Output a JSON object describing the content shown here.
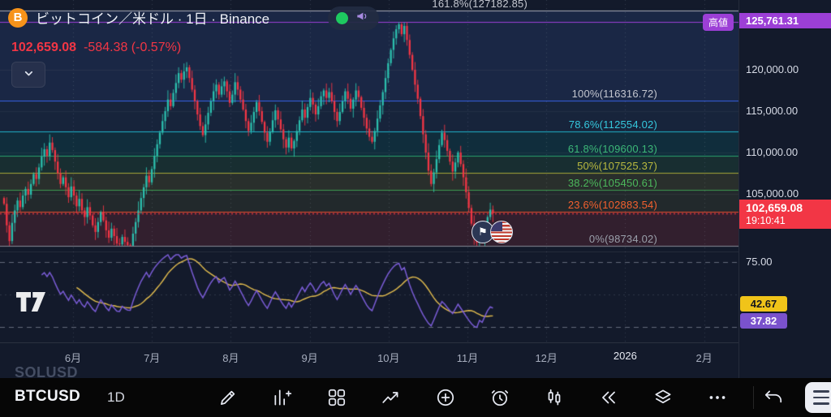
{
  "header": {
    "symbol_title": "ビットコイン／米ドル · 1日 · Binance",
    "price": "102,659.08",
    "change": "-584.38 (-0.57%)",
    "change_color": "#f23645"
  },
  "status_pill": {
    "market_dot_color": "#1ec960",
    "megaphone_icon": "megaphone-icon"
  },
  "collapse_button": {
    "icon": "chevron-down-icon"
  },
  "high_line": {
    "label": "高値",
    "price_label": "125,761.31",
    "price": 125761.31,
    "color": "#9c3fd6"
  },
  "current_price_line": {
    "price_label": "102,659.08",
    "time_label": "19:10:41",
    "price": 102659.08,
    "color": "#f23645"
  },
  "fib_levels": [
    {
      "pct": "161.8%",
      "label": "161.8%(127182.85)",
      "price": 127182.85,
      "text_color": "#c3c6cf",
      "line_color": "#b7bac4",
      "band_below": "rgba(70,110,205,0.16)"
    },
    {
      "pct": "100%",
      "label": "100%(116316.72)",
      "price": 116316.72,
      "text_color": "#c3c6cf",
      "line_color": "#3d6dff",
      "band_below": "rgba(55,125,210,0.10)"
    },
    {
      "pct": "78.6%",
      "label": "78.6%(112554.02)",
      "price": 112554.02,
      "text_color": "#35c8dd",
      "line_color": "#22c3da",
      "band_below": "rgba(0,188,190,0.12)"
    },
    {
      "pct": "61.8%",
      "label": "61.8%(109600.13)",
      "price": 109600.13,
      "text_color": "#3cb878",
      "line_color": "#2fae72",
      "band_below": "rgba(60,170,90,0.14)"
    },
    {
      "pct": "50%",
      "label": "50%(107525.37)",
      "price": 107525.37,
      "text_color": "#b9b93f",
      "line_color": "#b5b53a",
      "band_below": "rgba(175,175,60,0.14)"
    },
    {
      "pct": "38.2%",
      "label": "38.2%(105450.61)",
      "price": 105450.61,
      "text_color": "#4cb85c",
      "line_color": "#43a956",
      "band_below": "rgba(150,160,60,0.12)"
    },
    {
      "pct": "23.6%",
      "label": "23.6%(102883.54)",
      "price": 102883.54,
      "text_color": "#f4602e",
      "line_color": "#f4552e",
      "band_below": "rgba(225,60,70,0.15)"
    },
    {
      "pct": "0%",
      "label": "0%(98734.02)",
      "price": 98734.02,
      "text_color": "#9aa0ab",
      "line_color": "#9598a1",
      "band_below": null
    }
  ],
  "price_axis_ticks": [
    {
      "label": "120,000.00",
      "price": 120000
    },
    {
      "label": "115,000.00",
      "price": 115000
    },
    {
      "label": "110,000.00",
      "price": 110000
    },
    {
      "label": "105,000.00",
      "price": 105000
    }
  ],
  "rsi_pane": {
    "tick_label": "75.00",
    "tick_value": 75,
    "guide_high": 75,
    "guide_mid": 50,
    "guide_low": 25,
    "ma_badge": {
      "label": "42.67",
      "value": 42.67,
      "bg": "#f0c419",
      "fg": "#15171e"
    },
    "rsi_badge": {
      "label": "37.82",
      "value": 37.82,
      "bg": "#7a52cc",
      "fg": "#ffffff"
    }
  },
  "time_axis": {
    "labels": [
      "6月",
      "7月",
      "8月",
      "9月",
      "10月",
      "11月",
      "12月",
      "2026",
      "2月"
    ],
    "settings_icon": "gear-icon"
  },
  "watchlist_ghost": "SOLUSD",
  "event_flags": {
    "left_icon": "event-flag-icon",
    "right_icon": "us-flag-icon"
  },
  "toolbar": {
    "symbol": "BTCUSD",
    "interval": "1D",
    "icons": [
      "draw-icon",
      "indicators-icon",
      "layout-grid-icon",
      "trend-arrow-icon",
      "add-icon",
      "alert-icon",
      "chart-type-candles-icon",
      "replay-icon",
      "layers-icon",
      "more-icon"
    ],
    "undo_icon": "undo-icon",
    "menu_icon": "menu-icon"
  },
  "watermark": "tradingview-logo",
  "chart_data": {
    "type": "candlestick",
    "symbol": "BTCUSD",
    "interval": "1D",
    "visible_high": 125761.31,
    "visible_low": 98734.02,
    "last_close": 102659.08,
    "candle_up_color": "#2cbfae",
    "candle_down_color": "#f23645",
    "closes_thousands": [
      103.8,
      101.2,
      99.3,
      101.5,
      103.0,
      104.2,
      103.4,
      104.8,
      105.6,
      104.9,
      106.2,
      107.4,
      106.8,
      108.2,
      109.5,
      110.4,
      109.6,
      111.2,
      110.3,
      108.9,
      107.5,
      106.2,
      107.0,
      105.8,
      104.6,
      105.9,
      104.8,
      103.5,
      104.4,
      103.0,
      102.2,
      103.4,
      102.4,
      101.2,
      100.4,
      101.6,
      102.8,
      101.8,
      100.6,
      99.7,
      100.8,
      99.9,
      99.0,
      98.9,
      99.8,
      99.2,
      98.8,
      98.74,
      100.2,
      101.6,
      103.0,
      104.5,
      105.8,
      107.2,
      106.4,
      108.0,
      109.6,
      111.0,
      112.4,
      113.8,
      115.0,
      116.4,
      115.6,
      117.2,
      118.4,
      119.6,
      118.8,
      119.8,
      120.3,
      119.0,
      117.6,
      116.2,
      114.6,
      113.2,
      112.1,
      113.4,
      114.8,
      116.2,
      117.4,
      118.2,
      117.0,
      118.0,
      118.6,
      117.4,
      116.0,
      117.0,
      118.5,
      117.6,
      116.4,
      115.2,
      113.8,
      112.6,
      113.6,
      114.9,
      116.1,
      115.0,
      113.7,
      112.4,
      111.3,
      112.5,
      113.9,
      115.1,
      114.0,
      112.8,
      111.6,
      110.6,
      111.8,
      110.5,
      111.4,
      112.6,
      113.9,
      115.2,
      114.2,
      115.5,
      116.6,
      115.8,
      114.6,
      115.6,
      116.8,
      117.5,
      116.6,
      117.3,
      116.2,
      114.9,
      113.8,
      114.9,
      116.2,
      117.4,
      116.5,
      115.3,
      116.4,
      117.5,
      116.7,
      115.4,
      114.2,
      112.9,
      111.9,
      111.3,
      112.6,
      114.1,
      115.7,
      117.3,
      119.0,
      120.8,
      122.4,
      123.8,
      124.9,
      125.5,
      124.3,
      125.3,
      123.6,
      121.8,
      120.0,
      118.2,
      116.5,
      114.4,
      112.2,
      110.0,
      107.8,
      106.2,
      107.6,
      109.2,
      110.9,
      112.4,
      111.5,
      110.2,
      108.9,
      107.7,
      108.8,
      110.0,
      108.6,
      107.0,
      105.2,
      103.3,
      101.4,
      99.8,
      99.1,
      100.6,
      99.6,
      100.9,
      102.2,
      103.1,
      102.659
    ],
    "rsi": {
      "period": 14,
      "line_color": "#7a5cd6",
      "ma_color": "#e3bd4e",
      "last_value": 37.82,
      "ma_last_value": 42.67
    }
  }
}
